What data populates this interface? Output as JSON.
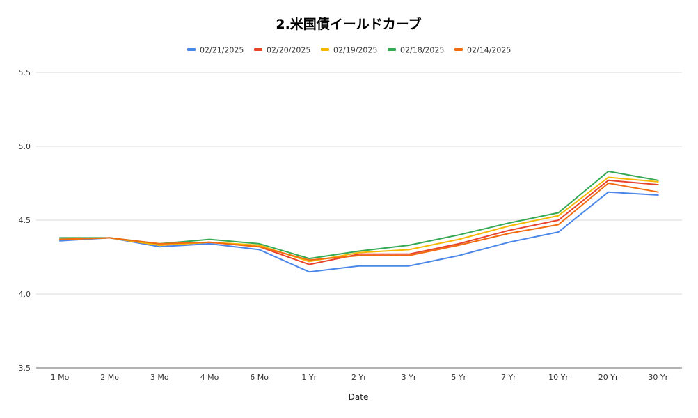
{
  "chart_data": {
    "type": "line",
    "title": "2.米国債イールドカーブ",
    "xlabel": "Date",
    "ylabel": "",
    "categories": [
      "1 Mo",
      "2 Mo",
      "3 Mo",
      "4 Mo",
      "6 Mo",
      "1 Yr",
      "2 Yr",
      "3 Yr",
      "5 Yr",
      "7 Yr",
      "10 Yr",
      "20 Yr",
      "30 Yr"
    ],
    "ylim": [
      3.5,
      5.5
    ],
    "yticks": [
      "3.5",
      "4.0",
      "4.5",
      "5.0",
      "5.5"
    ],
    "grid": true,
    "legend_position": "top",
    "series": [
      {
        "name": "02/21/2025",
        "color": "#4a86e8",
        "values": [
          4.36,
          4.38,
          4.32,
          4.34,
          4.3,
          4.15,
          4.19,
          4.19,
          4.26,
          4.35,
          4.42,
          4.69,
          4.67
        ]
      },
      {
        "name": "02/20/2025",
        "color": "#e8432c",
        "values": [
          4.37,
          4.38,
          4.33,
          4.35,
          4.32,
          4.2,
          4.27,
          4.27,
          4.34,
          4.43,
          4.5,
          4.77,
          4.74
        ]
      },
      {
        "name": "02/19/2025",
        "color": "#f5b800",
        "values": [
          4.37,
          4.38,
          4.33,
          4.35,
          4.33,
          4.22,
          4.28,
          4.3,
          4.37,
          4.46,
          4.53,
          4.79,
          4.76
        ]
      },
      {
        "name": "02/18/2025",
        "color": "#34a853",
        "values": [
          4.38,
          4.38,
          4.34,
          4.37,
          4.34,
          4.24,
          4.29,
          4.33,
          4.4,
          4.48,
          4.55,
          4.83,
          4.77
        ]
      },
      {
        "name": "02/14/2025",
        "color": "#f26b0f",
        "values": [
          4.37,
          4.38,
          4.34,
          4.35,
          4.32,
          4.23,
          4.26,
          4.26,
          4.33,
          4.41,
          4.47,
          4.75,
          4.69
        ]
      }
    ]
  }
}
